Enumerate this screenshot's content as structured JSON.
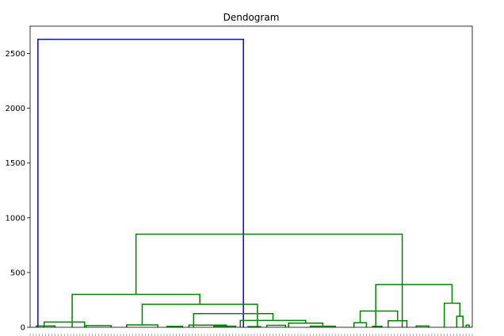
{
  "chart_data": {
    "type": "dendrogram",
    "title": "Dendogram",
    "xlabel": "",
    "ylabel": "",
    "ylim": [
      0,
      2750
    ],
    "yticks": [
      0,
      500,
      1000,
      1500,
      2000,
      2500
    ],
    "grid": false,
    "colors": {
      "above_threshold": "#0000ff",
      "cluster": "#008000",
      "axis": "#000000"
    },
    "merges": [
      {
        "left": 2.5,
        "right": 68.5,
        "height": 2630,
        "color": "#0000ff"
      },
      {
        "left": 34,
        "right": 119.5,
        "height": 850,
        "color": "#008000"
      },
      {
        "left": 13.5,
        "right": 54.5,
        "height": 300,
        "color": "#008000"
      },
      {
        "left": 36,
        "right": 73,
        "height": 210,
        "color": "#008000"
      },
      {
        "left": 52.5,
        "right": 78,
        "height": 125,
        "color": "#008000"
      },
      {
        "left": 67.5,
        "right": 88.5,
        "height": 62,
        "color": "#008000"
      },
      {
        "left": 83,
        "right": 94,
        "height": 38,
        "color": "#008000"
      },
      {
        "left": 4.5,
        "right": 17.5,
        "height": 48,
        "color": "#008000"
      },
      {
        "left": 111,
        "right": 135.5,
        "height": 390,
        "color": "#008000"
      },
      {
        "left": 106,
        "right": 118,
        "height": 148,
        "color": "#008000"
      },
      {
        "left": 115,
        "right": 121,
        "height": 60,
        "color": "#008000"
      },
      {
        "left": 133,
        "right": 138,
        "height": 220,
        "color": "#008000"
      },
      {
        "left": 137,
        "right": 139,
        "height": 100,
        "color": "#008000"
      },
      {
        "left": 104,
        "right": 108,
        "height": 42,
        "color": "#008000"
      },
      {
        "left": 31,
        "right": 41,
        "height": 22,
        "color": "#008000"
      },
      {
        "left": 51,
        "right": 63,
        "height": 20,
        "color": "#008000"
      },
      {
        "left": 18,
        "right": 26,
        "height": 15,
        "color": "#008000"
      },
      {
        "left": 76,
        "right": 82,
        "height": 18,
        "color": "#008000"
      },
      {
        "left": 90,
        "right": 98,
        "height": 10,
        "color": "#008000"
      },
      {
        "left": 124,
        "right": 128,
        "height": 12,
        "color": "#008000"
      },
      {
        "left": 2,
        "right": 8,
        "height": 12,
        "color": "#008000"
      },
      {
        "left": 44,
        "right": 49,
        "height": 8,
        "color": "#008000"
      },
      {
        "left": 59,
        "right": 66,
        "height": 10,
        "color": "#008000"
      },
      {
        "left": 70,
        "right": 74,
        "height": 6,
        "color": "#008000"
      },
      {
        "left": 110,
        "right": 113,
        "height": 8,
        "color": "#008000"
      },
      {
        "left": 140,
        "right": 141,
        "height": 20,
        "color": "#008000"
      }
    ]
  }
}
